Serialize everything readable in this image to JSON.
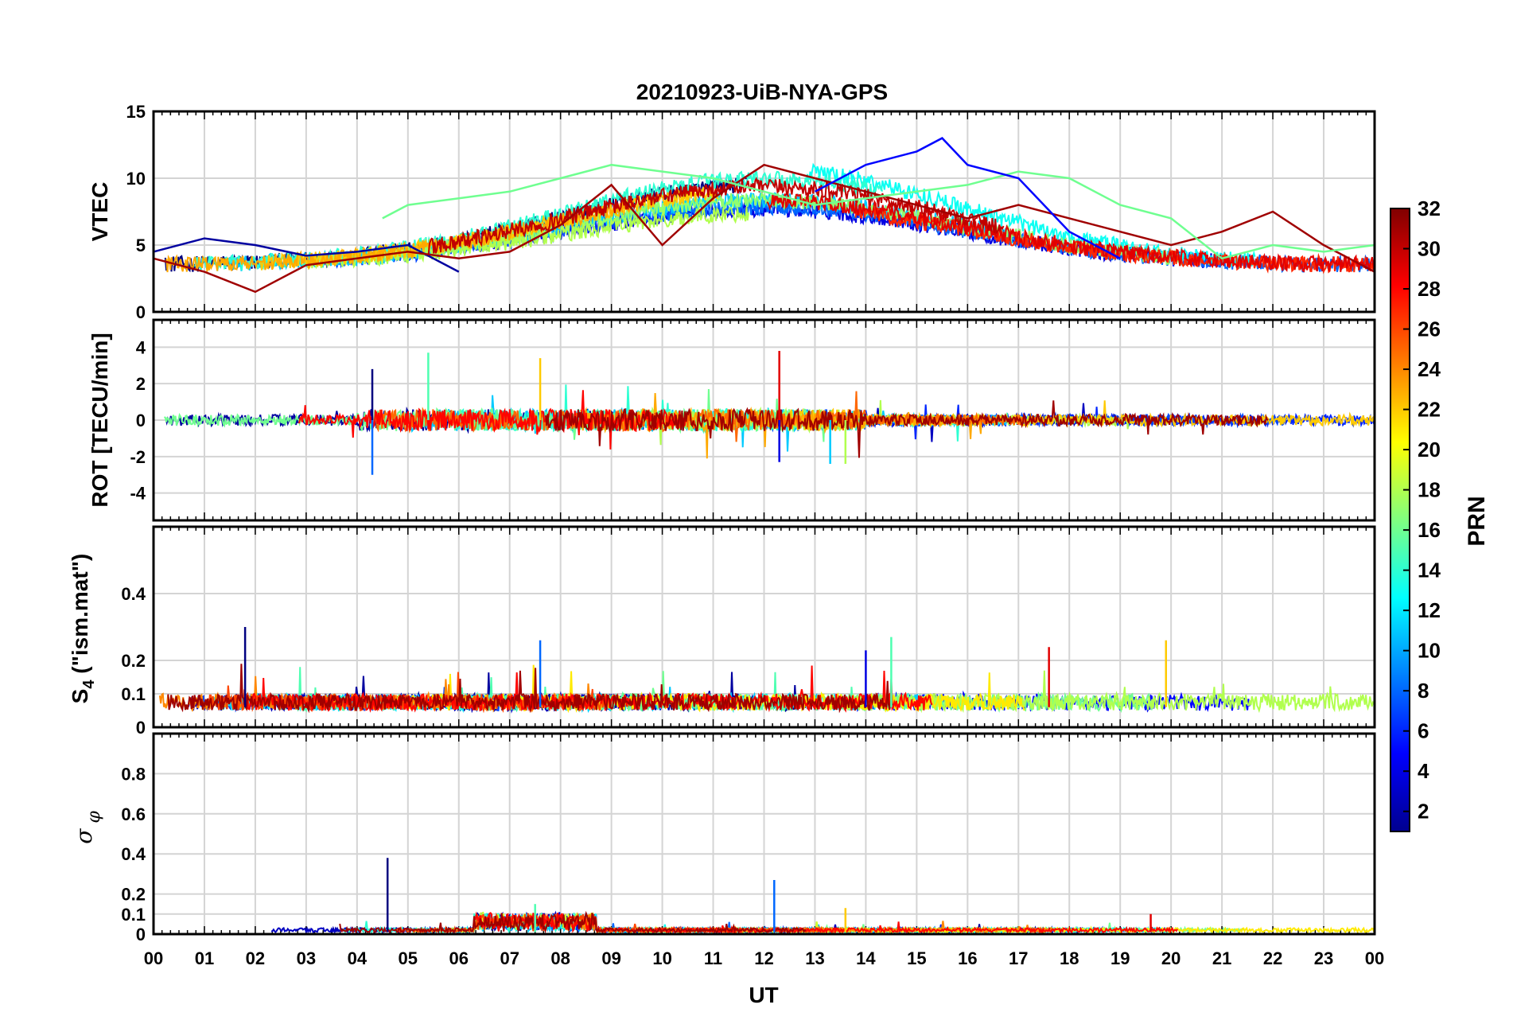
{
  "chart_data": {
    "type": "line",
    "title": "20210923-UiB-NYA-GPS",
    "xlabel": "UT",
    "x_ticks": [
      "00",
      "01",
      "02",
      "03",
      "04",
      "05",
      "06",
      "07",
      "08",
      "09",
      "10",
      "11",
      "12",
      "13",
      "14",
      "15",
      "16",
      "17",
      "18",
      "19",
      "20",
      "21",
      "22",
      "23",
      "00"
    ],
    "x_range_hours": [
      0,
      24
    ],
    "colorbar": {
      "label": "PRN",
      "range": [
        1,
        32
      ],
      "ticks": [
        "2",
        "4",
        "6",
        "8",
        "10",
        "12",
        "14",
        "16",
        "18",
        "20",
        "22",
        "24",
        "26",
        "28",
        "30",
        "32"
      ],
      "colormap": "jet"
    },
    "panels": [
      {
        "id": "vtec",
        "ylabel": "VTEC",
        "ylim": [
          0,
          15
        ],
        "yticks": [
          "0",
          "5",
          "10",
          "15"
        ],
        "description_series": [
          {
            "name": "PRN 2",
            "x": [
              0,
              1,
              2,
              3,
              4,
              5,
              6
            ],
            "y": [
              4.5,
              5.5,
              5.0,
              4.2,
              4.5,
              5.0,
              3.0
            ]
          },
          {
            "name": "PRN 31",
            "x": [
              0,
              1,
              2,
              3,
              4,
              5,
              6,
              7,
              8,
              9,
              10,
              11,
              12,
              13,
              14,
              15,
              16,
              17,
              18,
              19,
              20,
              21,
              22,
              23,
              24
            ],
            "y": [
              4,
              3,
              1.5,
              3.5,
              4,
              4.5,
              4,
              4.5,
              6.5,
              9.5,
              5,
              8.5,
              11,
              10,
              9,
              8,
              7,
              8,
              7,
              6,
              5,
              6,
              7.5,
              5,
              3
            ]
          },
          {
            "name": "PRN 16",
            "x": [
              4.5,
              5,
              6,
              7,
              8,
              9,
              10,
              11,
              12,
              13,
              14,
              15,
              16,
              17,
              18,
              19,
              20,
              21,
              22,
              23,
              24
            ],
            "y": [
              7,
              8,
              8.5,
              9,
              10,
              11,
              10.5,
              10,
              9,
              8,
              8.5,
              9,
              9.5,
              10.5,
              10,
              8,
              7,
              4,
              5,
              4.5,
              5
            ]
          },
          {
            "name": "PRN 5",
            "x": [
              13,
              14,
              15,
              15.5,
              16,
              17,
              18,
              19
            ],
            "y": [
              9,
              11,
              12,
              13,
              11,
              10,
              6,
              4
            ]
          }
        ]
      },
      {
        "id": "rot",
        "ylabel": "ROT [TECU/min]",
        "ylim": [
          -5.5,
          5.5
        ],
        "yticks": [
          "-4",
          "-2",
          "0",
          "2",
          "4"
        ],
        "spikes": [
          {
            "x": 4.3,
            "y": 2.8
          },
          {
            "x": 4.3,
            "y": -3.0
          },
          {
            "x": 5.4,
            "y": 3.7
          },
          {
            "x": 7.6,
            "y": 3.4
          },
          {
            "x": 12.3,
            "y": 3.8
          },
          {
            "x": 12.3,
            "y": -2.3
          },
          {
            "x": 13.3,
            "y": -2.4
          },
          {
            "x": 13.6,
            "y": -2.4
          }
        ]
      },
      {
        "id": "s4",
        "ylabel": "S4 (\"ism.mat\")",
        "ylim": [
          0,
          0.6
        ],
        "yticks": [
          "0",
          "0.1",
          "0.2",
          "0.4"
        ],
        "peaks": [
          {
            "x": 1.8,
            "y": 0.3
          },
          {
            "x": 7.6,
            "y": 0.26
          },
          {
            "x": 14.5,
            "y": 0.27
          },
          {
            "x": 19.9,
            "y": 0.26
          },
          {
            "x": 17.6,
            "y": 0.24
          },
          {
            "x": 14.0,
            "y": 0.23
          }
        ]
      },
      {
        "id": "sigma_phi",
        "ylabel": "σφ",
        "ylim": [
          0,
          1.0
        ],
        "yticks": [
          "0",
          "0.1",
          "0.2",
          "0.4",
          "0.6",
          "0.8"
        ],
        "peaks": [
          {
            "x": 4.6,
            "y": 0.38
          },
          {
            "x": 12.2,
            "y": 0.27
          },
          {
            "x": 7.5,
            "y": 0.15
          },
          {
            "x": 13.6,
            "y": 0.13
          },
          {
            "x": 19.6,
            "y": 0.1
          }
        ]
      }
    ]
  }
}
